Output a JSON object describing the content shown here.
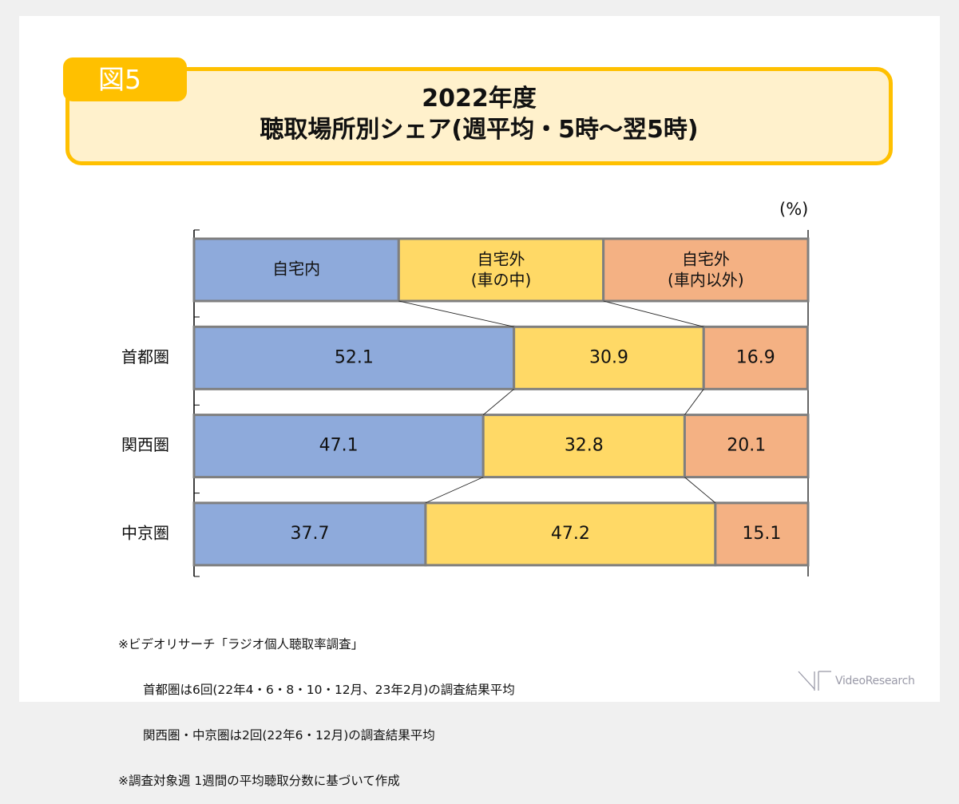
{
  "figure_tab": "図5",
  "title": {
    "line1": "2022年度",
    "line2": "聴取場所別シェア(週平均・5時～翌5時)"
  },
  "unit_label": "(%)",
  "colors": {
    "home": "#8eaadb",
    "car": "#ffd966",
    "outside_other": "#f4b183",
    "bar_border": "#7f7f7f",
    "title_border": "#ffc000",
    "title_bg": "#fff1cc"
  },
  "chart_data": {
    "type": "bar",
    "orientation": "horizontal",
    "stacked": "100%",
    "title": "2022年度 聴取場所別シェア(週平均・5時～翌5時)",
    "xlabel": "",
    "ylabel": "",
    "unit": "%",
    "xlim": [
      0,
      100
    ],
    "grid": false,
    "legend": {
      "placement": "top (as header bar)",
      "entries": [
        {
          "line1": "自宅内",
          "line2": ""
        },
        {
          "line1": "自宅外",
          "line2": "(車の中)"
        },
        {
          "line1": "自宅外",
          "line2": "(車内以外)"
        }
      ]
    },
    "categories": [
      "首都圏",
      "関西圏",
      "中京圏"
    ],
    "series": [
      {
        "name": "自宅内",
        "values": [
          52.1,
          47.1,
          37.7
        ]
      },
      {
        "name": "自宅外(車の中)",
        "values": [
          30.9,
          32.8,
          47.2
        ]
      },
      {
        "name": "自宅外(車内以外)",
        "values": [
          16.9,
          20.1,
          15.1
        ]
      }
    ],
    "series_lines": true
  },
  "footnotes": [
    "※ビデオリサーチ「ラジオ個人聴取率調査」",
    "　　首都圏は6回(22年4・6・8・10・12月、23年2月)の調査結果平均",
    "　　関西圏・中京圏は2回(22年6・12月)の調査結果平均",
    "※調査対象週 1週間の平均聴取分数に基づいて作成"
  ],
  "logo_text": "VideoResearch"
}
